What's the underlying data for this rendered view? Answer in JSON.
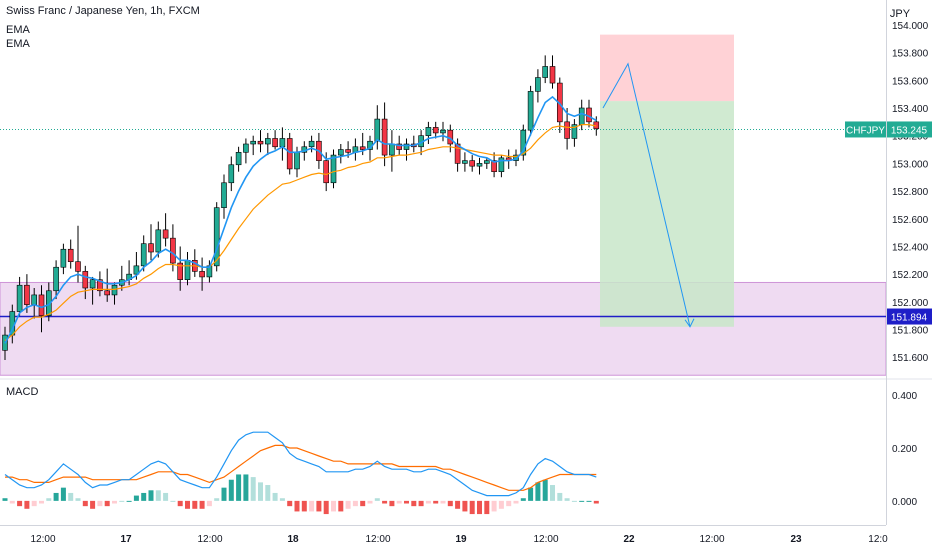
{
  "header": {
    "title": "Swiss Franc / Japanese Yen, 1h, FXCM",
    "ema_label_1": "EMA",
    "ema_label_2": "EMA",
    "macd_label": "MACD"
  },
  "price_axis": {
    "currency": "JPY",
    "ticks": [
      "154.000",
      "153.800",
      "153.600",
      "153.400",
      "153.200",
      "153.000",
      "152.800",
      "152.600",
      "152.400",
      "152.200",
      "152.000",
      "151.800",
      "151.600"
    ],
    "tick_values": [
      154.0,
      153.8,
      153.6,
      153.4,
      153.2,
      153.0,
      152.8,
      152.6,
      152.4,
      152.2,
      152.0,
      151.8,
      151.6
    ],
    "symbol_badge": "CHFJPY",
    "last_price": "153.245",
    "hline_price": "151.894"
  },
  "macd_axis": {
    "ticks": [
      "0.400",
      "0.200",
      "0.000"
    ],
    "tick_values": [
      0.4,
      0.2,
      0.0
    ]
  },
  "time_axis": {
    "labels": [
      "12:00",
      "17",
      "12:00",
      "18",
      "12:00",
      "19",
      "12:00",
      "22",
      "12:00",
      "23",
      "12:0"
    ]
  },
  "colors": {
    "up": "#22ab94",
    "down": "#f23645",
    "ema_fast": "#2196f3",
    "ema_slow": "#ff9800",
    "zone": "#e1bee7",
    "hline": "#1e1ec8",
    "target": "#c8e6c9",
    "stop": "#ffcdd2"
  },
  "chart_data": {
    "type": "candlestick",
    "symbol": "CHFJPY",
    "interval": "1h",
    "ylim": [
      151.45,
      154.18
    ],
    "candles": [
      [
        151.65,
        151.82,
        151.58,
        151.76
      ],
      [
        151.76,
        151.98,
        151.7,
        151.93
      ],
      [
        151.93,
        152.18,
        151.9,
        152.12
      ],
      [
        152.12,
        152.2,
        151.92,
        151.98
      ],
      [
        151.98,
        152.1,
        151.88,
        152.05
      ],
      [
        152.05,
        152.12,
        151.78,
        151.9
      ],
      [
        151.9,
        152.14,
        151.86,
        152.08
      ],
      [
        152.08,
        152.3,
        152.02,
        152.25
      ],
      [
        152.25,
        152.42,
        152.2,
        152.38
      ],
      [
        152.38,
        152.45,
        152.24,
        152.29
      ],
      [
        152.29,
        152.55,
        152.14,
        152.22
      ],
      [
        152.22,
        152.26,
        152.02,
        152.1
      ],
      [
        152.1,
        152.18,
        151.98,
        152.16
      ],
      [
        152.16,
        152.22,
        152.04,
        152.08
      ],
      [
        152.08,
        152.24,
        152.0,
        152.05
      ],
      [
        152.05,
        152.14,
        151.98,
        152.12
      ],
      [
        152.12,
        152.26,
        152.08,
        152.16
      ],
      [
        152.16,
        152.3,
        152.12,
        152.2
      ],
      [
        152.2,
        152.36,
        152.16,
        152.26
      ],
      [
        152.26,
        152.48,
        152.22,
        152.42
      ],
      [
        152.42,
        152.56,
        152.3,
        152.36
      ],
      [
        152.36,
        152.58,
        152.32,
        152.52
      ],
      [
        152.52,
        152.64,
        152.4,
        152.46
      ],
      [
        152.46,
        152.56,
        152.22,
        152.28
      ],
      [
        152.28,
        152.4,
        152.08,
        152.16
      ],
      [
        152.16,
        152.36,
        152.12,
        152.3
      ],
      [
        152.3,
        152.38,
        152.18,
        152.22
      ],
      [
        152.22,
        152.32,
        152.08,
        152.18
      ],
      [
        152.18,
        152.3,
        152.14,
        152.26
      ],
      [
        152.26,
        152.72,
        152.22,
        152.68
      ],
      [
        152.68,
        152.92,
        152.6,
        152.86
      ],
      [
        152.86,
        153.05,
        152.8,
        152.99
      ],
      [
        152.99,
        153.12,
        152.94,
        153.08
      ],
      [
        153.08,
        153.18,
        153.0,
        153.14
      ],
      [
        153.14,
        153.2,
        153.06,
        153.16
      ],
      [
        153.16,
        153.24,
        153.08,
        153.14
      ],
      [
        153.14,
        153.22,
        153.06,
        153.18
      ],
      [
        153.18,
        153.24,
        153.1,
        153.12
      ],
      [
        153.12,
        153.26,
        153.02,
        153.18
      ],
      [
        153.18,
        153.22,
        152.92,
        152.96
      ],
      [
        152.96,
        153.12,
        152.9,
        153.08
      ],
      [
        153.08,
        153.16,
        153.02,
        153.12
      ],
      [
        153.12,
        153.2,
        153.08,
        153.16
      ],
      [
        153.16,
        153.22,
        152.96,
        153.02
      ],
      [
        153.02,
        153.08,
        152.8,
        152.86
      ],
      [
        152.86,
        153.1,
        152.82,
        153.06
      ],
      [
        153.06,
        153.14,
        153.0,
        153.1
      ],
      [
        153.1,
        153.16,
        153.04,
        153.08
      ],
      [
        153.08,
        153.18,
        153.02,
        153.12
      ],
      [
        153.12,
        153.22,
        153.06,
        153.1
      ],
      [
        153.1,
        153.2,
        153.02,
        153.16
      ],
      [
        153.16,
        153.42,
        153.1,
        153.32
      ],
      [
        153.32,
        153.44,
        152.98,
        153.06
      ],
      [
        153.06,
        153.24,
        152.94,
        153.14
      ],
      [
        153.14,
        153.2,
        153.06,
        153.1
      ],
      [
        153.1,
        153.18,
        153.02,
        153.14
      ],
      [
        153.14,
        153.2,
        153.08,
        153.12
      ],
      [
        153.12,
        153.24,
        153.06,
        153.2
      ],
      [
        153.2,
        153.3,
        153.14,
        153.26
      ],
      [
        153.26,
        153.3,
        153.18,
        153.22
      ],
      [
        153.22,
        153.3,
        153.16,
        153.24
      ],
      [
        153.24,
        153.28,
        153.08,
        153.14
      ],
      [
        153.14,
        153.18,
        152.94,
        153.0
      ],
      [
        153.0,
        153.08,
        152.94,
        153.02
      ],
      [
        153.02,
        153.06,
        152.94,
        152.98
      ],
      [
        152.98,
        153.04,
        152.92,
        153.0
      ],
      [
        153.0,
        153.04,
        152.96,
        153.02
      ],
      [
        153.02,
        153.08,
        152.9,
        152.94
      ],
      [
        152.94,
        153.06,
        152.9,
        153.04
      ],
      [
        153.04,
        153.1,
        152.96,
        153.02
      ],
      [
        153.02,
        153.1,
        152.98,
        153.06
      ],
      [
        153.06,
        153.28,
        153.02,
        153.24
      ],
      [
        153.24,
        153.56,
        153.2,
        153.52
      ],
      [
        153.52,
        153.68,
        153.44,
        153.62
      ],
      [
        153.62,
        153.78,
        153.58,
        153.7
      ],
      [
        153.7,
        153.78,
        153.54,
        153.58
      ],
      [
        153.58,
        153.62,
        153.22,
        153.3
      ],
      [
        153.3,
        153.4,
        153.1,
        153.18
      ],
      [
        153.18,
        153.32,
        153.12,
        153.28
      ],
      [
        153.28,
        153.46,
        153.24,
        153.4
      ],
      [
        153.4,
        153.46,
        153.26,
        153.3
      ],
      [
        153.3,
        153.34,
        153.2,
        153.25
      ]
    ],
    "ema_fast": [
      151.7,
      151.8,
      151.92,
      151.96,
      151.98,
      151.96,
      151.98,
      152.04,
      152.12,
      152.18,
      152.2,
      152.18,
      152.17,
      152.15,
      152.13,
      152.13,
      152.14,
      152.16,
      152.19,
      152.25,
      152.29,
      152.35,
      152.38,
      152.35,
      152.3,
      152.3,
      152.28,
      152.25,
      152.25,
      152.38,
      152.53,
      152.68,
      152.8,
      152.9,
      152.98,
      153.03,
      153.07,
      153.09,
      153.12,
      153.08,
      153.08,
      153.09,
      153.11,
      153.09,
      153.03,
      153.04,
      153.05,
      153.06,
      153.08,
      153.09,
      153.11,
      153.17,
      153.14,
      153.14,
      153.13,
      153.13,
      153.13,
      153.15,
      153.18,
      153.19,
      153.2,
      153.18,
      153.13,
      153.1,
      153.07,
      153.05,
      153.04,
      153.01,
      153.02,
      153.02,
      153.03,
      153.09,
      153.21,
      153.33,
      153.44,
      153.48,
      153.43,
      153.36,
      153.34,
      153.36,
      153.34,
      153.31
    ],
    "ema_slow": [
      151.72,
      151.76,
      151.82,
      151.86,
      151.89,
      151.89,
      151.91,
      151.94,
      151.99,
      152.04,
      152.07,
      152.08,
      152.09,
      152.09,
      152.09,
      152.09,
      152.1,
      152.11,
      152.13,
      152.17,
      152.2,
      152.24,
      152.27,
      152.27,
      152.26,
      152.26,
      152.26,
      152.25,
      152.25,
      152.3,
      152.37,
      152.45,
      152.53,
      152.6,
      152.67,
      152.72,
      152.77,
      152.81,
      152.85,
      152.86,
      152.88,
      152.9,
      152.92,
      152.93,
      152.92,
      152.94,
      152.95,
      152.97,
      152.98,
      153.0,
      153.01,
      153.04,
      153.04,
      153.05,
      153.06,
      153.06,
      153.07,
      153.08,
      153.1,
      153.11,
      153.12,
      153.12,
      153.11,
      153.1,
      153.09,
      153.08,
      153.07,
      153.06,
      153.06,
      153.05,
      153.05,
      153.07,
      153.11,
      153.17,
      153.22,
      153.26,
      153.27,
      153.26,
      153.26,
      153.28,
      153.28,
      153.27
    ],
    "horizontal_line": 151.894,
    "support_zone": [
      151.47,
      152.14
    ],
    "position": {
      "entry": 153.45,
      "stop": 153.93,
      "target": 151.82
    },
    "projection": [
      [
        153.4,
        153.72
      ],
      [
        153.72,
        151.82
      ]
    ],
    "macd_ylim": [
      -0.08,
      0.45
    ],
    "macd": [
      0.1,
      0.08,
      0.06,
      0.05,
      0.05,
      0.06,
      0.08,
      0.11,
      0.14,
      0.12,
      0.1,
      0.07,
      0.05,
      0.06,
      0.06,
      0.07,
      0.08,
      0.08,
      0.1,
      0.12,
      0.14,
      0.15,
      0.14,
      0.11,
      0.08,
      0.07,
      0.06,
      0.05,
      0.05,
      0.09,
      0.14,
      0.19,
      0.23,
      0.25,
      0.26,
      0.26,
      0.26,
      0.24,
      0.22,
      0.18,
      0.16,
      0.15,
      0.14,
      0.13,
      0.11,
      0.11,
      0.11,
      0.11,
      0.12,
      0.12,
      0.13,
      0.15,
      0.13,
      0.12,
      0.12,
      0.12,
      0.11,
      0.11,
      0.12,
      0.12,
      0.11,
      0.1,
      0.08,
      0.06,
      0.04,
      0.03,
      0.02,
      0.02,
      0.02,
      0.02,
      0.03,
      0.05,
      0.1,
      0.14,
      0.16,
      0.15,
      0.13,
      0.11,
      0.1,
      0.1,
      0.1,
      0.09
    ],
    "signal": [
      0.09,
      0.09,
      0.08,
      0.08,
      0.07,
      0.07,
      0.07,
      0.08,
      0.09,
      0.09,
      0.09,
      0.09,
      0.08,
      0.08,
      0.08,
      0.08,
      0.08,
      0.08,
      0.08,
      0.09,
      0.1,
      0.11,
      0.11,
      0.11,
      0.1,
      0.1,
      0.09,
      0.08,
      0.07,
      0.08,
      0.09,
      0.11,
      0.13,
      0.15,
      0.17,
      0.19,
      0.2,
      0.21,
      0.21,
      0.2,
      0.2,
      0.19,
      0.18,
      0.17,
      0.16,
      0.15,
      0.15,
      0.14,
      0.14,
      0.14,
      0.14,
      0.14,
      0.14,
      0.14,
      0.13,
      0.13,
      0.13,
      0.13,
      0.13,
      0.13,
      0.12,
      0.12,
      0.11,
      0.1,
      0.09,
      0.08,
      0.07,
      0.06,
      0.05,
      0.04,
      0.04,
      0.04,
      0.05,
      0.07,
      0.08,
      0.09,
      0.1,
      0.1,
      0.1,
      0.1,
      0.1,
      0.1
    ]
  }
}
